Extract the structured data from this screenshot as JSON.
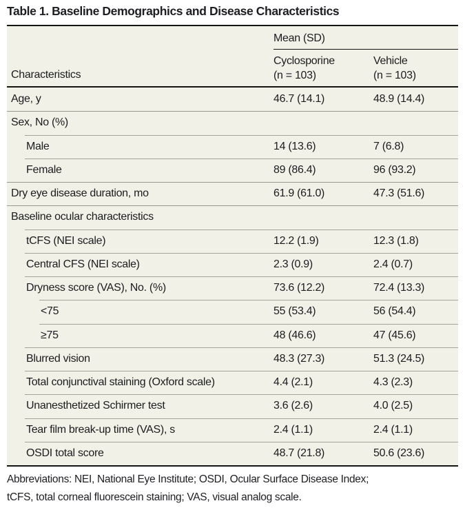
{
  "title": "Table 1. Baseline Demographics and Disease Characteristics",
  "colors": {
    "table_background": "#F2F1E7",
    "heavy_rule": "#141414",
    "section_rule": "#99988C",
    "sub_rule": "#A3A296",
    "text": "#1B1C20"
  },
  "header": {
    "row_header": "Characteristics",
    "group_header": "Mean (SD)",
    "columns": [
      {
        "label": "Cyclosporine",
        "sublabel": "(n = 103)"
      },
      {
        "label": "Vehicle",
        "sublabel": "(n = 103)"
      }
    ]
  },
  "rows": [
    {
      "label": "Age, y",
      "indent": 0,
      "rule": "none",
      "values": [
        "46.7 (14.1)",
        "48.9 (14.4)"
      ]
    },
    {
      "label": "Sex, No (%)",
      "indent": 0,
      "rule": "full",
      "values": [
        "",
        ""
      ]
    },
    {
      "label": "Male",
      "indent": 1,
      "rule": "indent1",
      "values": [
        "14 (13.6)",
        "7 (6.8)"
      ]
    },
    {
      "label": "Female",
      "indent": 1,
      "rule": "indent1",
      "values": [
        "89 (86.4)",
        "96 (93.2)"
      ]
    },
    {
      "label": "Dry eye disease duration, mo",
      "indent": 0,
      "rule": "full",
      "values": [
        "61.9 (61.0)",
        "47.3 (51.6)"
      ]
    },
    {
      "label": "Baseline ocular characteristics",
      "indent": 0,
      "rule": "full",
      "values": [
        "",
        ""
      ]
    },
    {
      "label": "tCFS (NEI scale)",
      "indent": 1,
      "rule": "indent1",
      "values": [
        "12.2 (1.9)",
        "12.3 (1.8)"
      ]
    },
    {
      "label": "Central CFS (NEI scale)",
      "indent": 1,
      "rule": "indent1",
      "values": [
        "2.3 (0.9)",
        "2.4 (0.7)"
      ]
    },
    {
      "label": "Dryness score (VAS), No. (%)",
      "indent": 1,
      "rule": "indent1",
      "values": [
        "73.6 (12.2)",
        "72.4 (13.3)"
      ]
    },
    {
      "label": "<75",
      "indent": 2,
      "rule": "indent2",
      "values": [
        "55 (53.4)",
        "56 (54.4)"
      ]
    },
    {
      "label": "≥75",
      "indent": 2,
      "rule": "indent2",
      "values": [
        "48 (46.6)",
        "47 (45.6)"
      ]
    },
    {
      "label": "Blurred vision",
      "indent": 1,
      "rule": "indent1",
      "values": [
        "48.3 (27.3)",
        "51.3 (24.5)"
      ]
    },
    {
      "label": "Total conjunctival staining (Oxford scale)",
      "indent": 1,
      "rule": "indent1",
      "values": [
        "4.4 (2.1)",
        "4.3 (2.3)"
      ]
    },
    {
      "label": "Unanesthetized Schirmer test",
      "indent": 1,
      "rule": "indent1",
      "values": [
        "3.6 (2.6)",
        "4.0 (2.5)"
      ]
    },
    {
      "label": "Tear film break-up time (VAS), s",
      "indent": 1,
      "rule": "indent1",
      "values": [
        "2.4 (1.1)",
        "2.4 (1.1)"
      ]
    },
    {
      "label": "OSDI total score",
      "indent": 1,
      "rule": "indent1",
      "values": [
        "48.7 (21.8)",
        "50.6 (23.6)"
      ]
    }
  ],
  "footnote": {
    "line1": "Abbreviations: NEI, National Eye Institute; OSDI, Ocular Surface Disease Index;",
    "line2": "tCFS, total corneal fluorescein staining; VAS, visual analog scale."
  }
}
